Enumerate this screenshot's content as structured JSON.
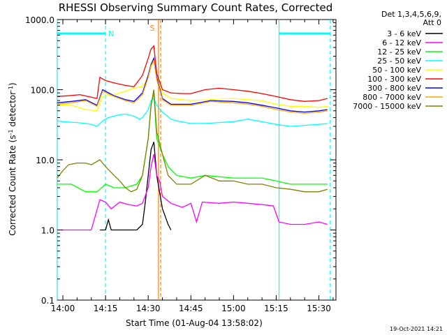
{
  "chart_data": {
    "type": "line",
    "title": "RHESSI Observing Summary Count Rates, Corrected",
    "xlabel": "Start Time (01-Aug-04 13:58:02)",
    "ylabel_main": "Corrected Count Rate (s",
    "ylabel_sup1": "-1",
    "ylabel_mid": " detector",
    "ylabel_sup2": "-1",
    "ylabel_end": ")",
    "y_scale": "log",
    "ylim": [
      0.1,
      1000
    ],
    "xlim": [
      "13:58:02",
      "15:36:00"
    ],
    "x_ticks": [
      "14:00",
      "14:15",
      "14:30",
      "14:45",
      "15:00",
      "15:15",
      "15:30"
    ],
    "y_ticks": [
      "0.1",
      "1.0",
      "10.0",
      "100.0",
      "1000.0"
    ],
    "legend_header": [
      "Det 1,3,4,5,6,9,",
      "Att 0"
    ],
    "series": [
      {
        "name": "3 - 6 keV",
        "color": "#000000",
        "points": [
          [
            "14:13",
            1.0
          ],
          [
            "14:15",
            1.0
          ],
          [
            "14:16",
            1.4
          ],
          [
            "14:17",
            1.0
          ],
          [
            "14:20",
            1.0
          ],
          [
            "14:24",
            1.0
          ],
          [
            "14:26",
            1.0
          ],
          [
            "14:28",
            1.2
          ],
          [
            "14:29",
            2.5
          ],
          [
            "14:30",
            6
          ],
          [
            "14:31",
            14
          ],
          [
            "14:32",
            18
          ],
          [
            "14:33",
            6
          ],
          [
            "14:35",
            2.0
          ],
          [
            "14:37",
            1.2
          ],
          [
            "14:38",
            1.0
          ]
        ]
      },
      {
        "name": "6 - 12 keV",
        "color": "#ff00ff",
        "points": [
          [
            "13:58",
            1.0
          ],
          [
            "14:00",
            1.0
          ],
          [
            "14:05",
            1.0
          ],
          [
            "14:10",
            1.0
          ],
          [
            "14:13",
            2.7
          ],
          [
            "14:15",
            2.5
          ],
          [
            "14:17",
            2.0
          ],
          [
            "14:20",
            2.5
          ],
          [
            "14:23",
            2.3
          ],
          [
            "14:26",
            2.2
          ],
          [
            "14:28",
            2.4
          ],
          [
            "14:30",
            4
          ],
          [
            "14:31",
            8
          ],
          [
            "14:32",
            12
          ],
          [
            "14:33",
            6
          ],
          [
            "14:34",
            5
          ],
          [
            "14:35",
            3
          ],
          [
            "14:38",
            2.4
          ],
          [
            "14:42",
            2.1
          ],
          [
            "14:45",
            2.4
          ],
          [
            "14:47",
            1.3
          ],
          [
            "14:49",
            2.5
          ],
          [
            "14:55",
            2.4
          ],
          [
            "15:00",
            2.5
          ],
          [
            "15:05",
            2.4
          ],
          [
            "15:10",
            2.3
          ],
          [
            "15:14",
            2.2
          ],
          [
            "15:16",
            1.3
          ],
          [
            "15:20",
            1.2
          ],
          [
            "15:25",
            1.2
          ],
          [
            "15:30",
            1.3
          ],
          [
            "15:33",
            1.2
          ]
        ]
      },
      {
        "name": "12 - 25 keV",
        "color": "#00ff00",
        "points": [
          [
            "13:58",
            4.5
          ],
          [
            "14:03",
            4.5
          ],
          [
            "14:08",
            3.5
          ],
          [
            "14:12",
            3.5
          ],
          [
            "14:15",
            4.5
          ],
          [
            "14:18",
            4.0
          ],
          [
            "14:22",
            4.0
          ],
          [
            "14:26",
            4.5
          ],
          [
            "14:28",
            6
          ],
          [
            "14:30",
            20
          ],
          [
            "14:31",
            60
          ],
          [
            "14:32",
            90
          ],
          [
            "14:33",
            20
          ],
          [
            "14:35",
            12
          ],
          [
            "14:37",
            8
          ],
          [
            "14:40",
            6
          ],
          [
            "14:45",
            5.5
          ],
          [
            "14:50",
            6
          ],
          [
            "15:00",
            5.5
          ],
          [
            "15:10",
            5.5
          ],
          [
            "15:15",
            5.0
          ],
          [
            "15:20",
            4.5
          ],
          [
            "15:25",
            4.5
          ],
          [
            "15:30",
            4.5
          ],
          [
            "15:33",
            4.5
          ]
        ]
      },
      {
        "name": "25 - 50 keV",
        "color": "#00ffff",
        "points": [
          [
            "13:58",
            36
          ],
          [
            "14:00",
            35
          ],
          [
            "14:05",
            34
          ],
          [
            "14:08",
            33
          ],
          [
            "14:10",
            32
          ],
          [
            "14:12",
            30
          ],
          [
            "14:14",
            36
          ],
          [
            "14:16",
            40
          ],
          [
            "14:18",
            42
          ],
          [
            "14:20",
            44
          ],
          [
            "14:22",
            45
          ],
          [
            "14:25",
            42
          ],
          [
            "14:27",
            38
          ],
          [
            "14:28",
            40
          ],
          [
            "14:30",
            52
          ],
          [
            "14:31",
            70
          ],
          [
            "14:32",
            75
          ],
          [
            "14:33",
            60
          ],
          [
            "14:35",
            48
          ],
          [
            "14:38",
            38
          ],
          [
            "14:40",
            36
          ],
          [
            "14:45",
            33
          ],
          [
            "14:50",
            33
          ],
          [
            "15:00",
            35
          ],
          [
            "15:05",
            38
          ],
          [
            "15:10",
            35
          ],
          [
            "15:15",
            32
          ],
          [
            "15:20",
            30
          ],
          [
            "15:25",
            31
          ],
          [
            "15:30",
            32
          ],
          [
            "15:33",
            33
          ]
        ]
      },
      {
        "name": "50 - 100 keV",
        "color": "#ffff00",
        "points": [
          [
            "13:58",
            60
          ],
          [
            "14:03",
            60
          ],
          [
            "14:08",
            52
          ],
          [
            "14:12",
            50
          ],
          [
            "14:14",
            80
          ],
          [
            "14:18",
            85
          ],
          [
            "14:22",
            95
          ],
          [
            "14:25",
            105
          ],
          [
            "14:28",
            110
          ],
          [
            "14:30",
            150
          ],
          [
            "14:31",
            210
          ],
          [
            "14:32",
            260
          ],
          [
            "14:33",
            150
          ],
          [
            "14:35",
            90
          ],
          [
            "14:38",
            75
          ],
          [
            "14:45",
            70
          ],
          [
            "15:00",
            75
          ],
          [
            "15:05",
            72
          ],
          [
            "15:10",
            70
          ],
          [
            "15:15",
            62
          ],
          [
            "15:20",
            58
          ],
          [
            "15:25",
            58
          ],
          [
            "15:30",
            56
          ],
          [
            "15:33",
            58
          ]
        ]
      },
      {
        "name": "100 - 300 keV",
        "color": "#ff0000",
        "points": [
          [
            "13:58",
            80
          ],
          [
            "14:02",
            82
          ],
          [
            "14:06",
            85
          ],
          [
            "14:10",
            78
          ],
          [
            "14:12",
            75
          ],
          [
            "14:13",
            150
          ],
          [
            "14:15",
            135
          ],
          [
            "14:18",
            125
          ],
          [
            "14:22",
            115
          ],
          [
            "14:25",
            110
          ],
          [
            "14:28",
            160
          ],
          [
            "14:30",
            280
          ],
          [
            "14:31",
            380
          ],
          [
            "14:32",
            420
          ],
          [
            "14:33",
            170
          ],
          [
            "14:35",
            100
          ],
          [
            "14:38",
            90
          ],
          [
            "14:42",
            88
          ],
          [
            "14:45",
            88
          ],
          [
            "14:50",
            100
          ],
          [
            "14:55",
            105
          ],
          [
            "15:00",
            100
          ],
          [
            "15:05",
            95
          ],
          [
            "15:10",
            88
          ],
          [
            "15:15",
            80
          ],
          [
            "15:20",
            72
          ],
          [
            "15:25",
            68
          ],
          [
            "15:30",
            70
          ],
          [
            "15:33",
            75
          ]
        ]
      },
      {
        "name": "300 - 800 keV",
        "color": "#0000ff",
        "points": [
          [
            "13:58",
            65
          ],
          [
            "14:03",
            68
          ],
          [
            "14:08",
            72
          ],
          [
            "14:12",
            60
          ],
          [
            "14:14",
            100
          ],
          [
            "14:18",
            82
          ],
          [
            "14:22",
            72
          ],
          [
            "14:25",
            68
          ],
          [
            "14:28",
            90
          ],
          [
            "14:30",
            160
          ],
          [
            "14:31",
            230
          ],
          [
            "14:32",
            280
          ],
          [
            "14:33",
            150
          ],
          [
            "14:35",
            75
          ],
          [
            "14:38",
            62
          ],
          [
            "14:45",
            62
          ],
          [
            "14:52",
            70
          ],
          [
            "15:00",
            68
          ],
          [
            "15:05",
            65
          ],
          [
            "15:10",
            60
          ],
          [
            "15:15",
            55
          ],
          [
            "15:20",
            50
          ],
          [
            "15:25",
            48
          ],
          [
            "15:30",
            50
          ],
          [
            "15:33",
            52
          ]
        ]
      },
      {
        "name": "800 - 7000 keV",
        "color": "#ffa500",
        "points": [
          [
            "13:58",
            62
          ],
          [
            "14:03",
            65
          ],
          [
            "14:08",
            70
          ],
          [
            "14:12",
            58
          ],
          [
            "14:14",
            95
          ],
          [
            "14:18",
            80
          ],
          [
            "14:22",
            70
          ],
          [
            "14:25",
            65
          ],
          [
            "14:28",
            85
          ],
          [
            "14:30",
            150
          ],
          [
            "14:31",
            220
          ],
          [
            "14:32",
            260
          ],
          [
            "14:33",
            140
          ],
          [
            "14:35",
            72
          ],
          [
            "14:38",
            60
          ],
          [
            "14:45",
            60
          ],
          [
            "14:52",
            68
          ],
          [
            "15:00",
            65
          ],
          [
            "15:05",
            62
          ],
          [
            "15:10",
            58
          ],
          [
            "15:15",
            52
          ],
          [
            "15:20",
            48
          ],
          [
            "15:25",
            46
          ],
          [
            "15:30",
            48
          ],
          [
            "15:33",
            50
          ]
        ]
      },
      {
        "name": "7000 - 15000 keV",
        "color": "#808000",
        "points": [
          [
            "13:58",
            5.5
          ],
          [
            "14:00",
            7
          ],
          [
            "14:02",
            8.5
          ],
          [
            "14:05",
            9
          ],
          [
            "14:08",
            9
          ],
          [
            "14:10",
            8.5
          ],
          [
            "14:13",
            10
          ],
          [
            "14:15",
            8
          ],
          [
            "14:18",
            6
          ],
          [
            "14:20",
            5
          ],
          [
            "14:22",
            4
          ],
          [
            "14:24",
            3.5
          ],
          [
            "14:26",
            3.8
          ],
          [
            "14:28",
            6
          ],
          [
            "14:30",
            20
          ],
          [
            "14:31",
            60
          ],
          [
            "14:32",
            100
          ],
          [
            "14:33",
            25
          ],
          [
            "14:35",
            12
          ],
          [
            "14:37",
            6
          ],
          [
            "14:40",
            4.5
          ],
          [
            "14:45",
            4.5
          ],
          [
            "14:50",
            6
          ],
          [
            "14:55",
            5
          ],
          [
            "15:00",
            5
          ],
          [
            "15:05",
            4.5
          ],
          [
            "15:10",
            4.5
          ],
          [
            "15:15",
            4
          ],
          [
            "15:20",
            3.8
          ],
          [
            "15:25",
            3.5
          ],
          [
            "15:30",
            3.5
          ],
          [
            "15:33",
            3.8
          ]
        ]
      }
    ],
    "markers": {
      "night_label": "N",
      "saa_label": "S",
      "night_intervals": [
        [
          "13:58",
          "14:15"
        ],
        [
          "15:16",
          "15:34"
        ]
      ],
      "vlines_solid_cyan": [
        "13:58",
        "15:16"
      ],
      "vlines_dashed_cyan": [
        "14:15",
        "15:34"
      ],
      "saa_center": "14:34",
      "night_color": "#00ffff",
      "saa_color": "#ff7f00"
    },
    "grid": false,
    "legend_position": "right"
  },
  "footer_timestamp": "19-Oct-2021 14:21"
}
